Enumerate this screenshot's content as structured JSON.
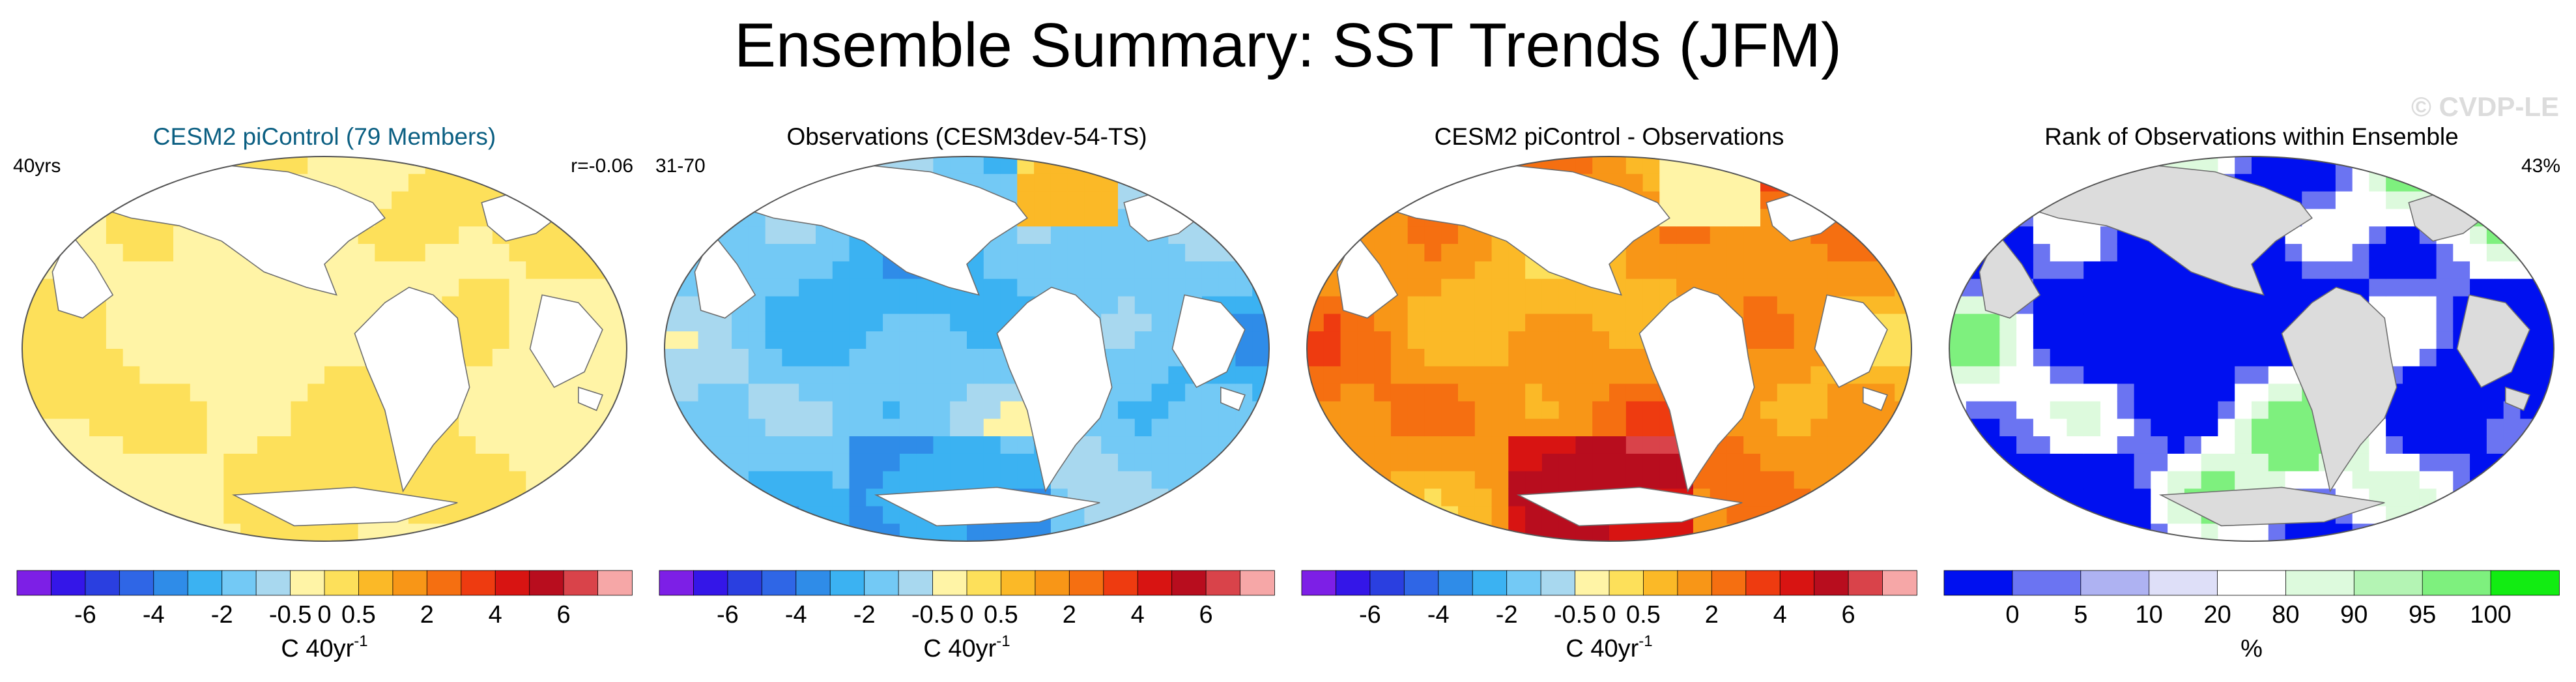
{
  "title": "Ensemble Summary: SST Trends (JFM)",
  "watermark": "© CVDP-LE",
  "colors": {
    "land": "#ffffff",
    "coast": "#6e6e6e",
    "subtitle_blue": "#0b5f82",
    "map_outline": "#555555",
    "rank_land": "#dcdcdc"
  },
  "chart_data": [
    {
      "type": "heatmap",
      "subtitle": "CESM2 piControl (79 Members)",
      "subtitle_color": "#0b5f82",
      "left_label": "40yrs",
      "right_label": "r=-0.06",
      "field": "ensemble_mean_trend",
      "colorbar": {
        "palette": [
          "#7d1fe6",
          "#3416e8",
          "#2a3fe0",
          "#2f66e6",
          "#2f8ce8",
          "#3bb2f2",
          "#73c9f5",
          "#a8d8ef",
          "#fff4a6",
          "#fde05a",
          "#fbb927",
          "#f89617",
          "#f56f11",
          "#ee3b10",
          "#d81412",
          "#b80d1e",
          "#d9434a",
          "#f6a7a7"
        ],
        "tick_labels": [
          "-6",
          "-4",
          "-2",
          "-0.5",
          "0",
          "0.5",
          "2",
          "4",
          "6"
        ],
        "tick_edges": [
          2,
          4,
          6,
          8,
          9,
          10,
          12,
          14,
          16
        ],
        "label": "C 40yr",
        "label_sup": "-1"
      }
    },
    {
      "type": "heatmap",
      "subtitle": "Observations (CESM3dev-54-TS)",
      "subtitle_color": "#000000",
      "left_label": "31-70",
      "right_label": "",
      "field": "observed_trend",
      "colorbar": {
        "palette": [
          "#7d1fe6",
          "#3416e8",
          "#2a3fe0",
          "#2f66e6",
          "#2f8ce8",
          "#3bb2f2",
          "#73c9f5",
          "#a8d8ef",
          "#fff4a6",
          "#fde05a",
          "#fbb927",
          "#f89617",
          "#f56f11",
          "#ee3b10",
          "#d81412",
          "#b80d1e",
          "#d9434a",
          "#f6a7a7"
        ],
        "tick_labels": [
          "-6",
          "-4",
          "-2",
          "-0.5",
          "0",
          "0.5",
          "2",
          "4",
          "6"
        ],
        "tick_edges": [
          2,
          4,
          6,
          8,
          9,
          10,
          12,
          14,
          16
        ],
        "label": "C 40yr",
        "label_sup": "-1"
      }
    },
    {
      "type": "heatmap",
      "subtitle": "CESM2 piControl - Observations",
      "subtitle_color": "#000000",
      "left_label": "",
      "right_label": "",
      "field": "difference",
      "colorbar": {
        "palette": [
          "#7d1fe6",
          "#3416e8",
          "#2a3fe0",
          "#2f66e6",
          "#2f8ce8",
          "#3bb2f2",
          "#73c9f5",
          "#a8d8ef",
          "#fff4a6",
          "#fde05a",
          "#fbb927",
          "#f89617",
          "#f56f11",
          "#ee3b10",
          "#d81412",
          "#b80d1e",
          "#d9434a",
          "#f6a7a7"
        ],
        "tick_labels": [
          "-6",
          "-4",
          "-2",
          "-0.5",
          "0",
          "0.5",
          "2",
          "4",
          "6"
        ],
        "tick_edges": [
          2,
          4,
          6,
          8,
          9,
          10,
          12,
          14,
          16
        ],
        "label": "C 40yr",
        "label_sup": "-1"
      }
    },
    {
      "type": "heatmap",
      "subtitle": "Rank of Observations within Ensemble",
      "subtitle_color": "#000000",
      "left_label": "",
      "right_label": "43%",
      "field": "rank_percent",
      "colorbar": {
        "palette": [
          "#0010f0",
          "#6b74f2",
          "#aeb2f2",
          "#dedff8",
          "#ffffff",
          "#ddfadd",
          "#b4f4b4",
          "#7ef07e",
          "#12ec12"
        ],
        "tick_labels": [
          "0",
          "5",
          "10",
          "20",
          "80",
          "90",
          "95",
          "100"
        ],
        "tick_edges": [
          1,
          2,
          3,
          4,
          5,
          6,
          7,
          8
        ],
        "label": "%",
        "label_sup": ""
      }
    }
  ]
}
